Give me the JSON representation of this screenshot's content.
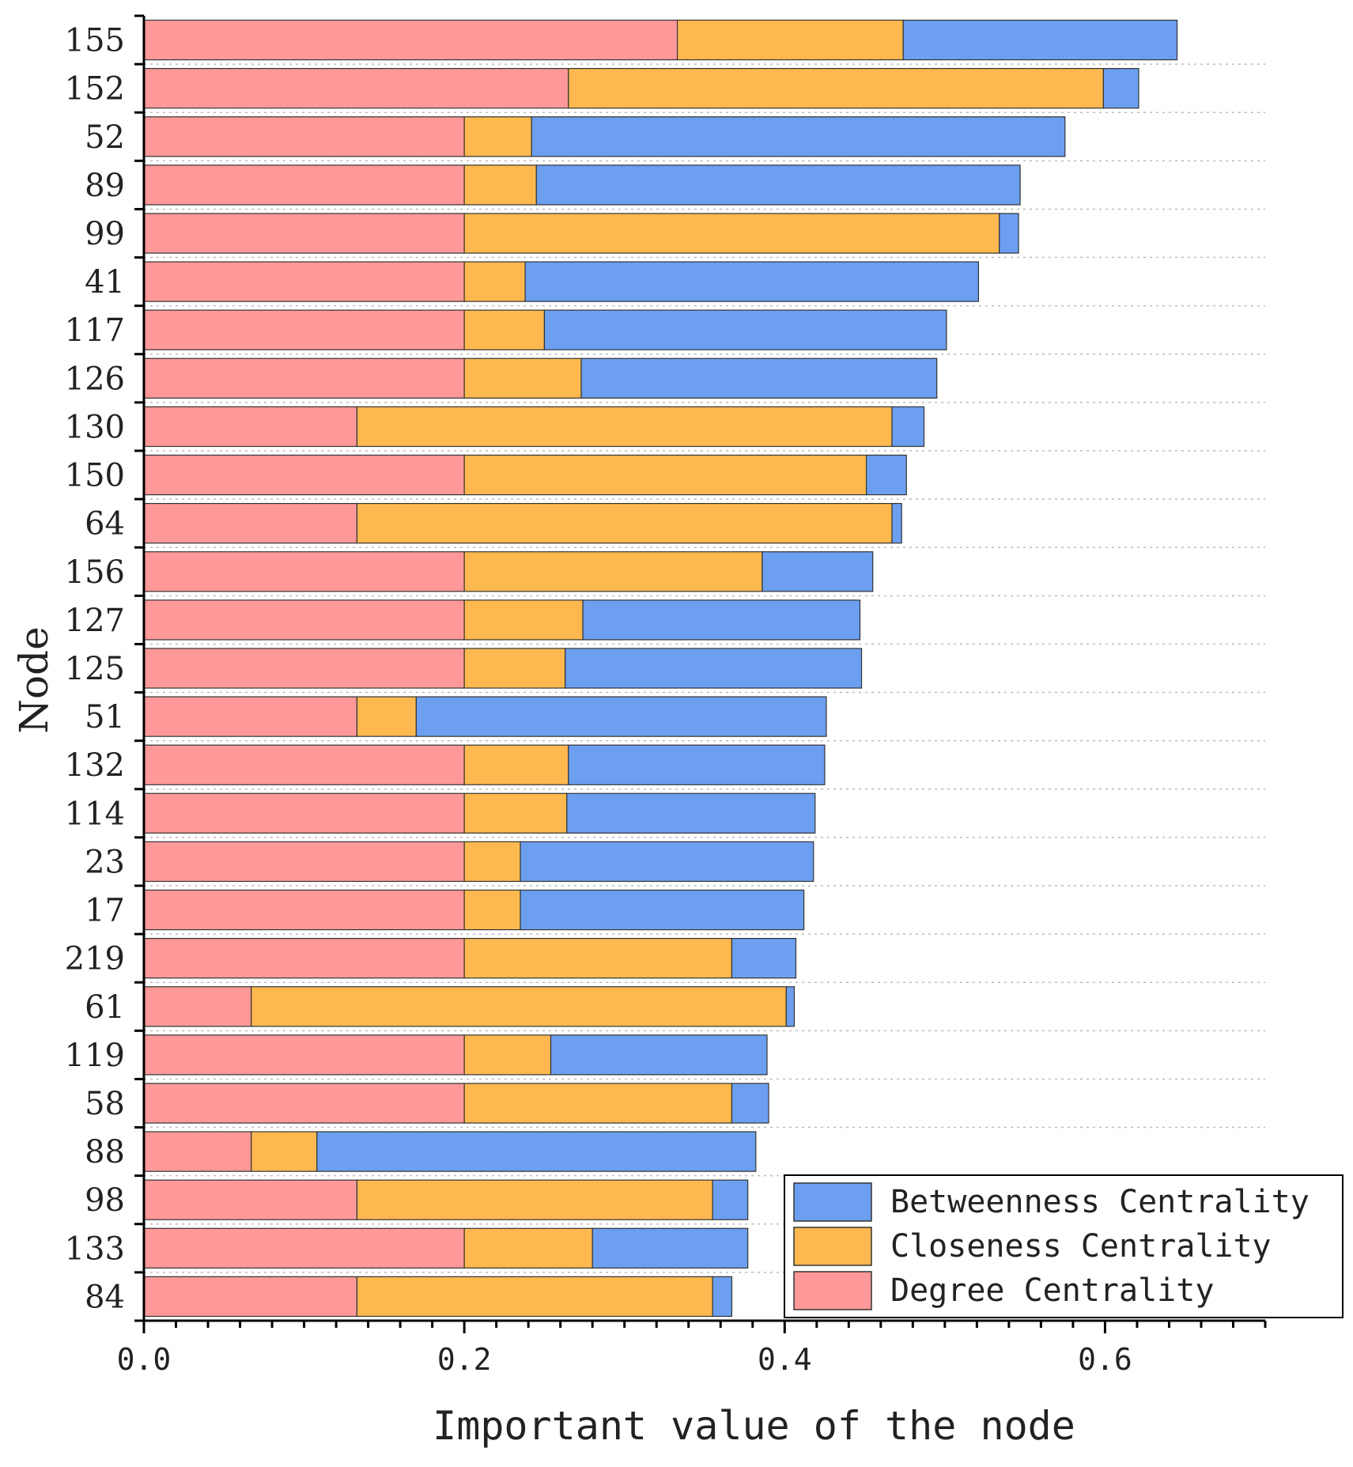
{
  "chart_data": {
    "type": "bar",
    "orientation": "horizontal",
    "stacked": true,
    "title": "",
    "xlabel": "Important value of the node",
    "ylabel": "Node",
    "xlim": [
      0,
      0.7
    ],
    "x_ticks": [
      0.0,
      0.2,
      0.4,
      0.6
    ],
    "x_tick_labels": [
      "0.0",
      "0.2",
      "0.4",
      "0.6"
    ],
    "grid": "dotted horizontal",
    "legend_position": "bottom-right",
    "categories": [
      "155",
      "152",
      "52",
      "89",
      "99",
      "41",
      "117",
      "126",
      "130",
      "150",
      "64",
      "156",
      "127",
      "125",
      "51",
      "132",
      "114",
      "23",
      "17",
      "219",
      "61",
      "119",
      "58",
      "88",
      "98",
      "133",
      "84"
    ],
    "series": [
      {
        "name": "Degree Centrality",
        "color": "#FF9999",
        "values": [
          0.333,
          0.265,
          0.2,
          0.2,
          0.2,
          0.2,
          0.2,
          0.2,
          0.133,
          0.2,
          0.133,
          0.2,
          0.2,
          0.2,
          0.133,
          0.2,
          0.2,
          0.2,
          0.2,
          0.2,
          0.067,
          0.2,
          0.2,
          0.067,
          0.133,
          0.2,
          0.133
        ]
      },
      {
        "name": "Closeness Centrality",
        "color": "#FDB94F",
        "values": [
          0.141,
          0.334,
          0.042,
          0.045,
          0.334,
          0.038,
          0.05,
          0.073,
          0.334,
          0.251,
          0.334,
          0.186,
          0.074,
          0.063,
          0.037,
          0.065,
          0.064,
          0.035,
          0.035,
          0.167,
          0.334,
          0.054,
          0.167,
          0.041,
          0.222,
          0.08,
          0.222
        ]
      },
      {
        "name": "Betweenness Centrality",
        "color": "#6C9FF0",
        "values": [
          0.171,
          0.022,
          0.333,
          0.302,
          0.012,
          0.283,
          0.251,
          0.222,
          0.02,
          0.025,
          0.006,
          0.069,
          0.173,
          0.185,
          0.256,
          0.16,
          0.155,
          0.183,
          0.177,
          0.04,
          0.005,
          0.135,
          0.023,
          0.274,
          0.022,
          0.097,
          0.012
        ]
      }
    ],
    "legend_entries": [
      "Betweenness Centrality",
      "Closeness Centrality",
      "Degree Centrality"
    ]
  }
}
